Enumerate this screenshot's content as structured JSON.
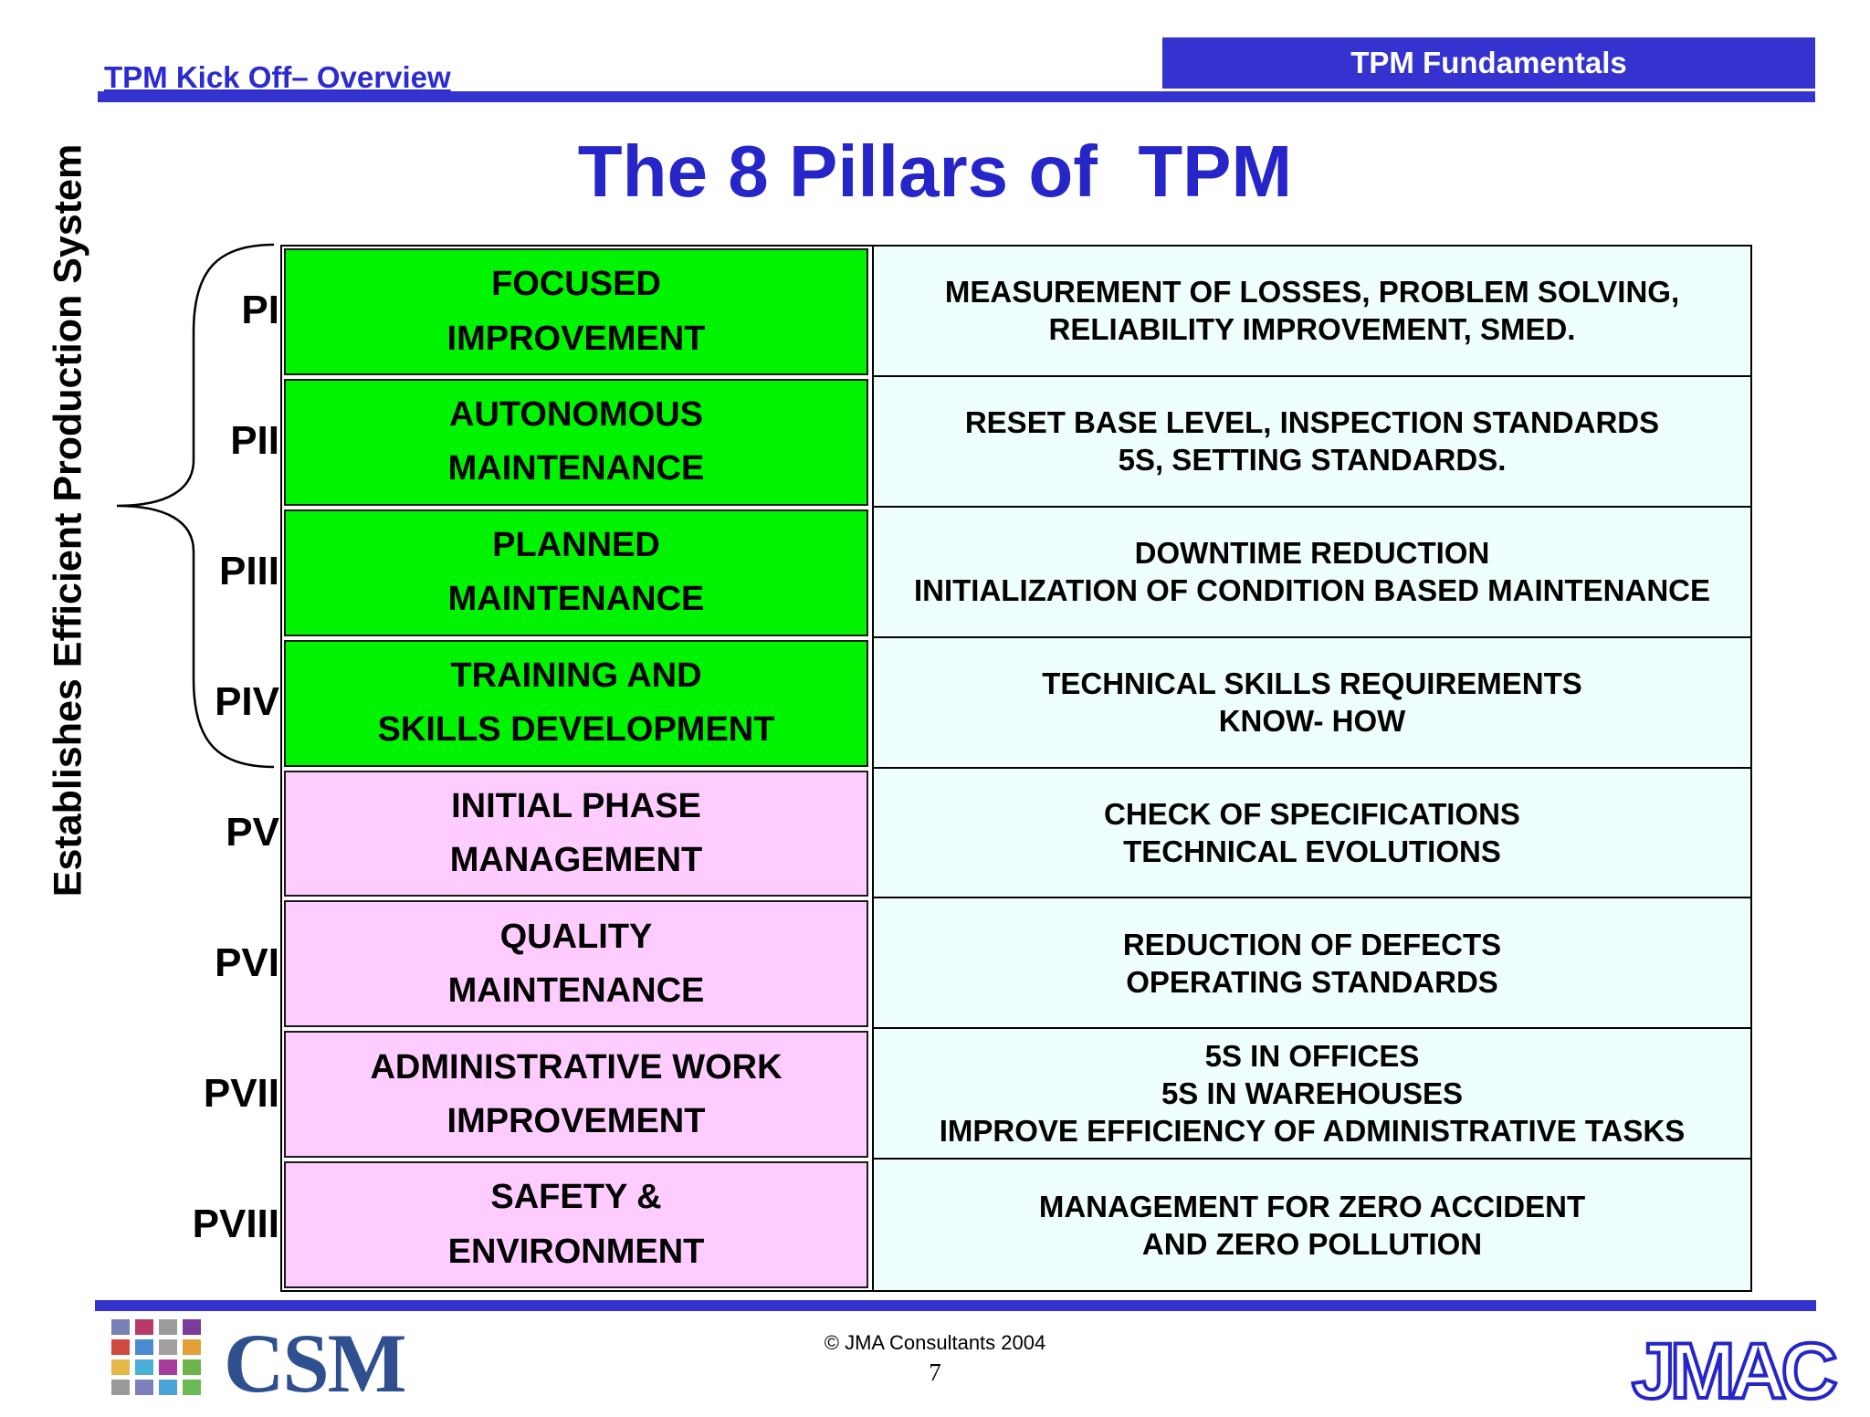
{
  "header": {
    "left_title": "TPM Kick Off– Overview",
    "right_title": "TPM Fundamentals"
  },
  "title": "The 8 Pillars of  TPM",
  "side_label": "Establishes Efficient Production System",
  "colors": {
    "accent_blue": "#3433cf",
    "title_blue": "#2525c8",
    "pillar_green": "#00f300",
    "pillar_pink": "#ffccff",
    "desc_bg": "#effffd"
  },
  "pillars": [
    {
      "id": "PI",
      "name": [
        "FOCUSED",
        "IMPROVEMENT"
      ],
      "desc": [
        "MEASUREMENT OF LOSSES, PROBLEM SOLVING,",
        "RELIABILITY IMPROVEMENT, SMED."
      ],
      "color": "green"
    },
    {
      "id": "PII",
      "name": [
        "AUTONOMOUS",
        "MAINTENANCE"
      ],
      "desc": [
        "RESET BASE LEVEL, INSPECTION STANDARDS",
        "5S, SETTING STANDARDS."
      ],
      "color": "green"
    },
    {
      "id": "PIII",
      "name": [
        "PLANNED",
        "MAINTENANCE"
      ],
      "desc": [
        "DOWNTIME REDUCTION",
        "INITIALIZATION OF CONDITION BASED MAINTENANCE"
      ],
      "color": "green"
    },
    {
      "id": "PIV",
      "name": [
        "TRAINING AND",
        "SKILLS DEVELOPMENT"
      ],
      "desc": [
        "TECHNICAL SKILLS REQUIREMENTS",
        "KNOW- HOW"
      ],
      "color": "green"
    },
    {
      "id": "PV",
      "name": [
        "INITIAL PHASE",
        "MANAGEMENT"
      ],
      "desc": [
        "CHECK OF SPECIFICATIONS",
        "TECHNICAL EVOLUTIONS"
      ],
      "color": "pink"
    },
    {
      "id": "PVI",
      "name": [
        "QUALITY",
        "MAINTENANCE"
      ],
      "desc": [
        "REDUCTION OF DEFECTS",
        "OPERATING STANDARDS"
      ],
      "color": "pink"
    },
    {
      "id": "PVII",
      "name": [
        "ADMINISTRATIVE WORK",
        "IMPROVEMENT"
      ],
      "desc": [
        "5S IN OFFICES",
        "5S IN WAREHOUSES",
        "IMPROVE EFFICIENCY OF ADMINISTRATIVE TASKS"
      ],
      "color": "pink"
    },
    {
      "id": "PVIII",
      "name": [
        "SAFETY &",
        "ENVIRONMENT"
      ],
      "desc": [
        "MANAGEMENT FOR  ZERO ACCIDENT",
        "AND  ZERO POLLUTION"
      ],
      "color": "pink"
    }
  ],
  "footer": {
    "logo_left": "CSM",
    "copyright": "© JMA Consultants 2004",
    "page_number": "7",
    "logo_right": "JMAC"
  }
}
